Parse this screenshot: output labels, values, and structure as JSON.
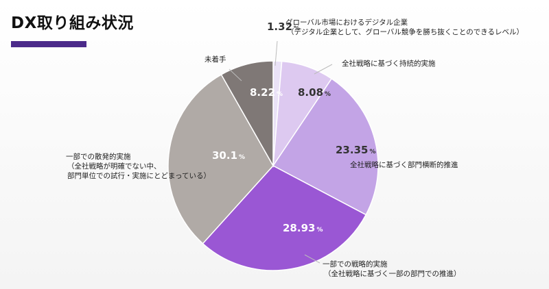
{
  "page": {
    "title": "DX取り組み状況"
  },
  "chart_data": {
    "type": "pie",
    "title": "DX取り組み状況",
    "slices": [
      {
        "value": 1.32,
        "value_label": "1.32",
        "label_lines": [
          "グローバル市場におけるデジタル企業",
          "（デジタル企業として、グローバル競争を勝ち抜くことのできるレベル）"
        ],
        "color": "#eae2f7"
      },
      {
        "value": 8.08,
        "value_label": "8.08",
        "label_lines": [
          "全社戦略に基づく持続的実施"
        ],
        "color": "#ddc9f0"
      },
      {
        "value": 23.35,
        "value_label": "23.35",
        "label_lines": [
          "全社戦略に基づく部門横断的推進"
        ],
        "color": "#c3a4e6"
      },
      {
        "value": 28.93,
        "value_label": "28.93",
        "label_lines": [
          "一部での戦略的実施",
          "（全社戦略に基づく一部の部門での推進）"
        ],
        "color": "#9a57d4"
      },
      {
        "value": 30.1,
        "value_label": "30.1",
        "label_lines": [
          "一部での散発的実施",
          "（全社戦略が明確でない中、",
          "部門単位での試行・実施にとどまっている）"
        ],
        "color": "#b0aaa6"
      },
      {
        "value": 8.22,
        "value_label": "8.22",
        "label_lines": [
          "未着手"
        ],
        "color": "#7f7876"
      }
    ],
    "unit": "%"
  }
}
